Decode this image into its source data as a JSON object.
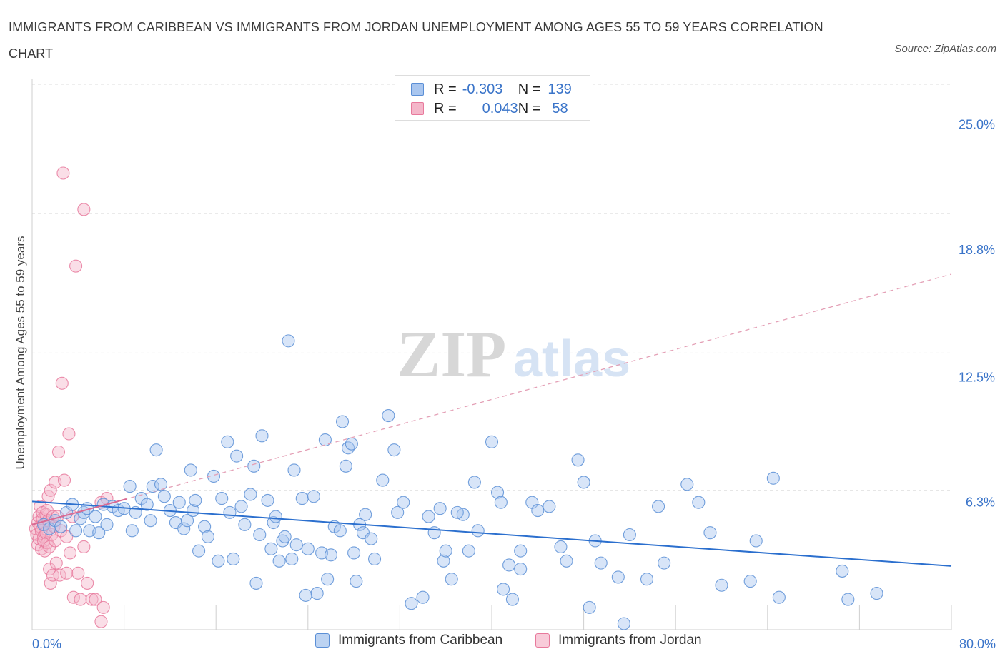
{
  "title": "IMMIGRANTS FROM CARIBBEAN VS IMMIGRANTS FROM JORDAN UNEMPLOYMENT AMONG AGES 55 TO 59 YEARS CORRELATION CHART",
  "source": "Source: ZipAtlas.com",
  "watermark": {
    "zip": "ZIP",
    "atlas": "atlas"
  },
  "colors": {
    "blue": "#5b8fd6",
    "blue_fill": "#a9c6ef",
    "blue_line": "#2b6fce",
    "pink": "#e8799c",
    "pink_fill": "#f4b6c9",
    "pink_line": "#e4a0b6",
    "axis_text": "#3a74c9",
    "grid": "#dddddd"
  },
  "legend_top": {
    "rows": [
      {
        "r_label": "R =",
        "r_value": "-0.303",
        "n_label": "N =",
        "n_value": "139",
        "series": "blue"
      },
      {
        "r_label": "R =",
        "r_value": "0.043",
        "n_label": "N =",
        "n_value": "58",
        "series": "pink"
      }
    ]
  },
  "legend_bottom": [
    {
      "label": "Immigrants from Caribbean",
      "series": "blue"
    },
    {
      "label": "Immigrants from Jordan",
      "series": "pink"
    }
  ],
  "chart_data": {
    "type": "scatter",
    "title": "IMMIGRANTS FROM CARIBBEAN VS IMMIGRANTS FROM JORDAN UNEMPLOYMENT AMONG AGES 55 TO 59 YEARS CORRELATION CHART",
    "xlabel": "",
    "ylabel": "Unemployment Among Ages 55 to 59 years",
    "xlim": [
      0,
      80
    ],
    "ylim": [
      0,
      27.0
    ],
    "x_tick_labels": [
      {
        "value": 0,
        "label": "0.0%"
      },
      {
        "value": 80,
        "label": "80.0%"
      }
    ],
    "y_tick_labels": [
      {
        "value": 6.3,
        "label": "6.3%"
      },
      {
        "value": 12.5,
        "label": "12.5%"
      },
      {
        "value": 18.8,
        "label": "18.8%"
      },
      {
        "value": 25.0,
        "label": "25.0%"
      }
    ],
    "y_gridlines": [
      6.9,
      13.7,
      20.6,
      27.0
    ],
    "x_ticks": [
      8,
      16,
      24,
      32,
      40,
      48,
      56,
      64,
      72,
      80
    ],
    "grid": true,
    "series": [
      {
        "name": "Immigrants from Caribbean",
        "color": "blue",
        "trend": {
          "x0": 0,
          "y0": 6.35,
          "x1": 80,
          "y1": 3.15,
          "style": "solid"
        },
        "points": [
          [
            1.0,
            5.2
          ],
          [
            1.5,
            5.0
          ],
          [
            2.0,
            5.4
          ],
          [
            2.5,
            5.1
          ],
          [
            3.0,
            5.8
          ],
          [
            3.5,
            6.2
          ],
          [
            3.8,
            4.9
          ],
          [
            4.2,
            5.5
          ],
          [
            4.5,
            5.8
          ],
          [
            4.8,
            6.0
          ],
          [
            5.0,
            4.9
          ],
          [
            5.5,
            5.6
          ],
          [
            5.8,
            4.8
          ],
          [
            6.2,
            6.2
          ],
          [
            6.5,
            5.2
          ],
          [
            7.0,
            6.1
          ],
          [
            7.5,
            5.9
          ],
          [
            8.0,
            6.0
          ],
          [
            8.5,
            7.1
          ],
          [
            8.7,
            4.9
          ],
          [
            9.0,
            5.8
          ],
          [
            9.5,
            6.5
          ],
          [
            10.0,
            6.2
          ],
          [
            10.3,
            5.4
          ],
          [
            10.5,
            7.1
          ],
          [
            10.8,
            8.9
          ],
          [
            11.2,
            7.2
          ],
          [
            11.5,
            6.6
          ],
          [
            12.0,
            5.9
          ],
          [
            12.5,
            5.3
          ],
          [
            12.8,
            6.3
          ],
          [
            13.2,
            5.0
          ],
          [
            13.5,
            5.4
          ],
          [
            13.8,
            7.9
          ],
          [
            14.0,
            5.9
          ],
          [
            14.2,
            6.4
          ],
          [
            14.5,
            3.9
          ],
          [
            15.0,
            5.1
          ],
          [
            15.3,
            4.6
          ],
          [
            15.8,
            7.6
          ],
          [
            16.2,
            3.4
          ],
          [
            16.5,
            6.5
          ],
          [
            17.0,
            9.3
          ],
          [
            17.2,
            5.8
          ],
          [
            17.5,
            3.5
          ],
          [
            17.8,
            8.6
          ],
          [
            18.2,
            6.1
          ],
          [
            18.5,
            5.2
          ],
          [
            19.0,
            6.7
          ],
          [
            19.3,
            8.1
          ],
          [
            19.5,
            2.3
          ],
          [
            19.8,
            4.7
          ],
          [
            20.0,
            9.6
          ],
          [
            20.5,
            6.4
          ],
          [
            20.8,
            4.0
          ],
          [
            21.0,
            5.3
          ],
          [
            21.2,
            5.6
          ],
          [
            21.5,
            3.4
          ],
          [
            21.8,
            4.4
          ],
          [
            22.0,
            4.6
          ],
          [
            22.3,
            14.3
          ],
          [
            22.6,
            3.5
          ],
          [
            22.8,
            7.9
          ],
          [
            23.0,
            4.2
          ],
          [
            23.5,
            6.5
          ],
          [
            23.8,
            1.7
          ],
          [
            24.0,
            4.0
          ],
          [
            24.5,
            6.6
          ],
          [
            24.8,
            1.8
          ],
          [
            25.2,
            3.8
          ],
          [
            25.5,
            9.4
          ],
          [
            25.7,
            2.5
          ],
          [
            26.0,
            3.7
          ],
          [
            26.3,
            5.1
          ],
          [
            26.8,
            4.9
          ],
          [
            27.0,
            10.3
          ],
          [
            27.3,
            8.1
          ],
          [
            27.5,
            9.0
          ],
          [
            27.8,
            9.2
          ],
          [
            28.0,
            3.8
          ],
          [
            28.5,
            5.2
          ],
          [
            28.8,
            4.8
          ],
          [
            29.0,
            5.7
          ],
          [
            29.5,
            4.5
          ],
          [
            29.8,
            3.5
          ],
          [
            30.5,
            7.4
          ],
          [
            31.0,
            10.6
          ],
          [
            31.5,
            8.9
          ],
          [
            31.8,
            5.8
          ],
          [
            32.3,
            6.3
          ],
          [
            33.0,
            1.3
          ],
          [
            34.0,
            1.6
          ],
          [
            35.0,
            4.8
          ],
          [
            35.5,
            6.0
          ],
          [
            35.8,
            3.4
          ],
          [
            36.0,
            3.9
          ],
          [
            36.5,
            2.5
          ],
          [
            37.5,
            5.7
          ],
          [
            38.0,
            3.9
          ],
          [
            38.5,
            7.3
          ],
          [
            38.8,
            4.9
          ],
          [
            40.0,
            9.3
          ],
          [
            40.5,
            6.8
          ],
          [
            41.0,
            2.0
          ],
          [
            41.5,
            3.2
          ],
          [
            41.8,
            1.5
          ],
          [
            42.5,
            3.0
          ],
          [
            42.5,
            3.9
          ],
          [
            43.5,
            6.3
          ],
          [
            44.0,
            5.9
          ],
          [
            45.0,
            6.1
          ],
          [
            46.5,
            3.4
          ],
          [
            47.5,
            8.4
          ],
          [
            48.0,
            7.3
          ],
          [
            48.5,
            1.1
          ],
          [
            49.0,
            4.4
          ],
          [
            49.5,
            3.3
          ],
          [
            51.0,
            2.6
          ],
          [
            51.5,
            0.3
          ],
          [
            52.0,
            4.7
          ],
          [
            54.5,
            6.1
          ],
          [
            55.0,
            3.3
          ],
          [
            57.0,
            7.2
          ],
          [
            58.0,
            6.3
          ],
          [
            59.0,
            4.8
          ],
          [
            60.0,
            2.2
          ],
          [
            62.5,
            2.4
          ],
          [
            63.0,
            4.4
          ],
          [
            64.5,
            7.5
          ],
          [
            65.0,
            1.6
          ],
          [
            70.5,
            2.9
          ],
          [
            71.0,
            1.5
          ],
          [
            73.5,
            1.8
          ],
          [
            53.5,
            2.5
          ],
          [
            28.2,
            2.4
          ],
          [
            34.5,
            5.6
          ],
          [
            46.0,
            4.1
          ],
          [
            37.0,
            5.8
          ],
          [
            40.8,
            6.3
          ]
        ]
      },
      {
        "name": "Immigrants from Jordan",
        "color": "pink",
        "trend": {
          "x0": 0,
          "y0": 5.2,
          "x1": 80,
          "y1": 17.6,
          "style": "dashed"
        },
        "points": [
          [
            0.3,
            5.0
          ],
          [
            0.4,
            4.7
          ],
          [
            0.5,
            5.3
          ],
          [
            0.5,
            4.2
          ],
          [
            0.6,
            5.6
          ],
          [
            0.6,
            4.5
          ],
          [
            0.7,
            5.1
          ],
          [
            0.7,
            6.1
          ],
          [
            0.8,
            4.9
          ],
          [
            0.8,
            4.0
          ],
          [
            0.9,
            5.5
          ],
          [
            0.9,
            5.8
          ],
          [
            1.0,
            4.6
          ],
          [
            1.0,
            4.4
          ],
          [
            1.1,
            5.2
          ],
          [
            1.1,
            3.9
          ],
          [
            1.2,
            5.7
          ],
          [
            1.2,
            4.8
          ],
          [
            1.3,
            5.9
          ],
          [
            1.3,
            4.3
          ],
          [
            1.4,
            6.6
          ],
          [
            1.4,
            5.4
          ],
          [
            1.5,
            4.1
          ],
          [
            1.5,
            3.0
          ],
          [
            1.6,
            6.9
          ],
          [
            1.6,
            2.3
          ],
          [
            1.7,
            4.7
          ],
          [
            1.8,
            5.6
          ],
          [
            1.8,
            2.7
          ],
          [
            1.9,
            5.1
          ],
          [
            2.0,
            7.3
          ],
          [
            2.0,
            4.4
          ],
          [
            2.1,
            3.3
          ],
          [
            2.2,
            5.6
          ],
          [
            2.3,
            8.8
          ],
          [
            2.4,
            2.7
          ],
          [
            2.5,
            4.9
          ],
          [
            2.6,
            12.2
          ],
          [
            2.7,
            22.6
          ],
          [
            2.8,
            7.4
          ],
          [
            3.0,
            2.8
          ],
          [
            3.0,
            4.6
          ],
          [
            3.2,
            9.7
          ],
          [
            3.3,
            3.8
          ],
          [
            3.5,
            5.6
          ],
          [
            3.6,
            1.6
          ],
          [
            3.8,
            18.0
          ],
          [
            4.0,
            2.8
          ],
          [
            4.2,
            1.5
          ],
          [
            4.5,
            4.1
          ],
          [
            4.5,
            20.8
          ],
          [
            4.8,
            2.3
          ],
          [
            5.2,
            1.5
          ],
          [
            5.5,
            1.5
          ],
          [
            6.0,
            6.3
          ],
          [
            6.2,
            1.1
          ],
          [
            6.5,
            6.5
          ],
          [
            6.0,
            0.4
          ]
        ]
      }
    ]
  }
}
